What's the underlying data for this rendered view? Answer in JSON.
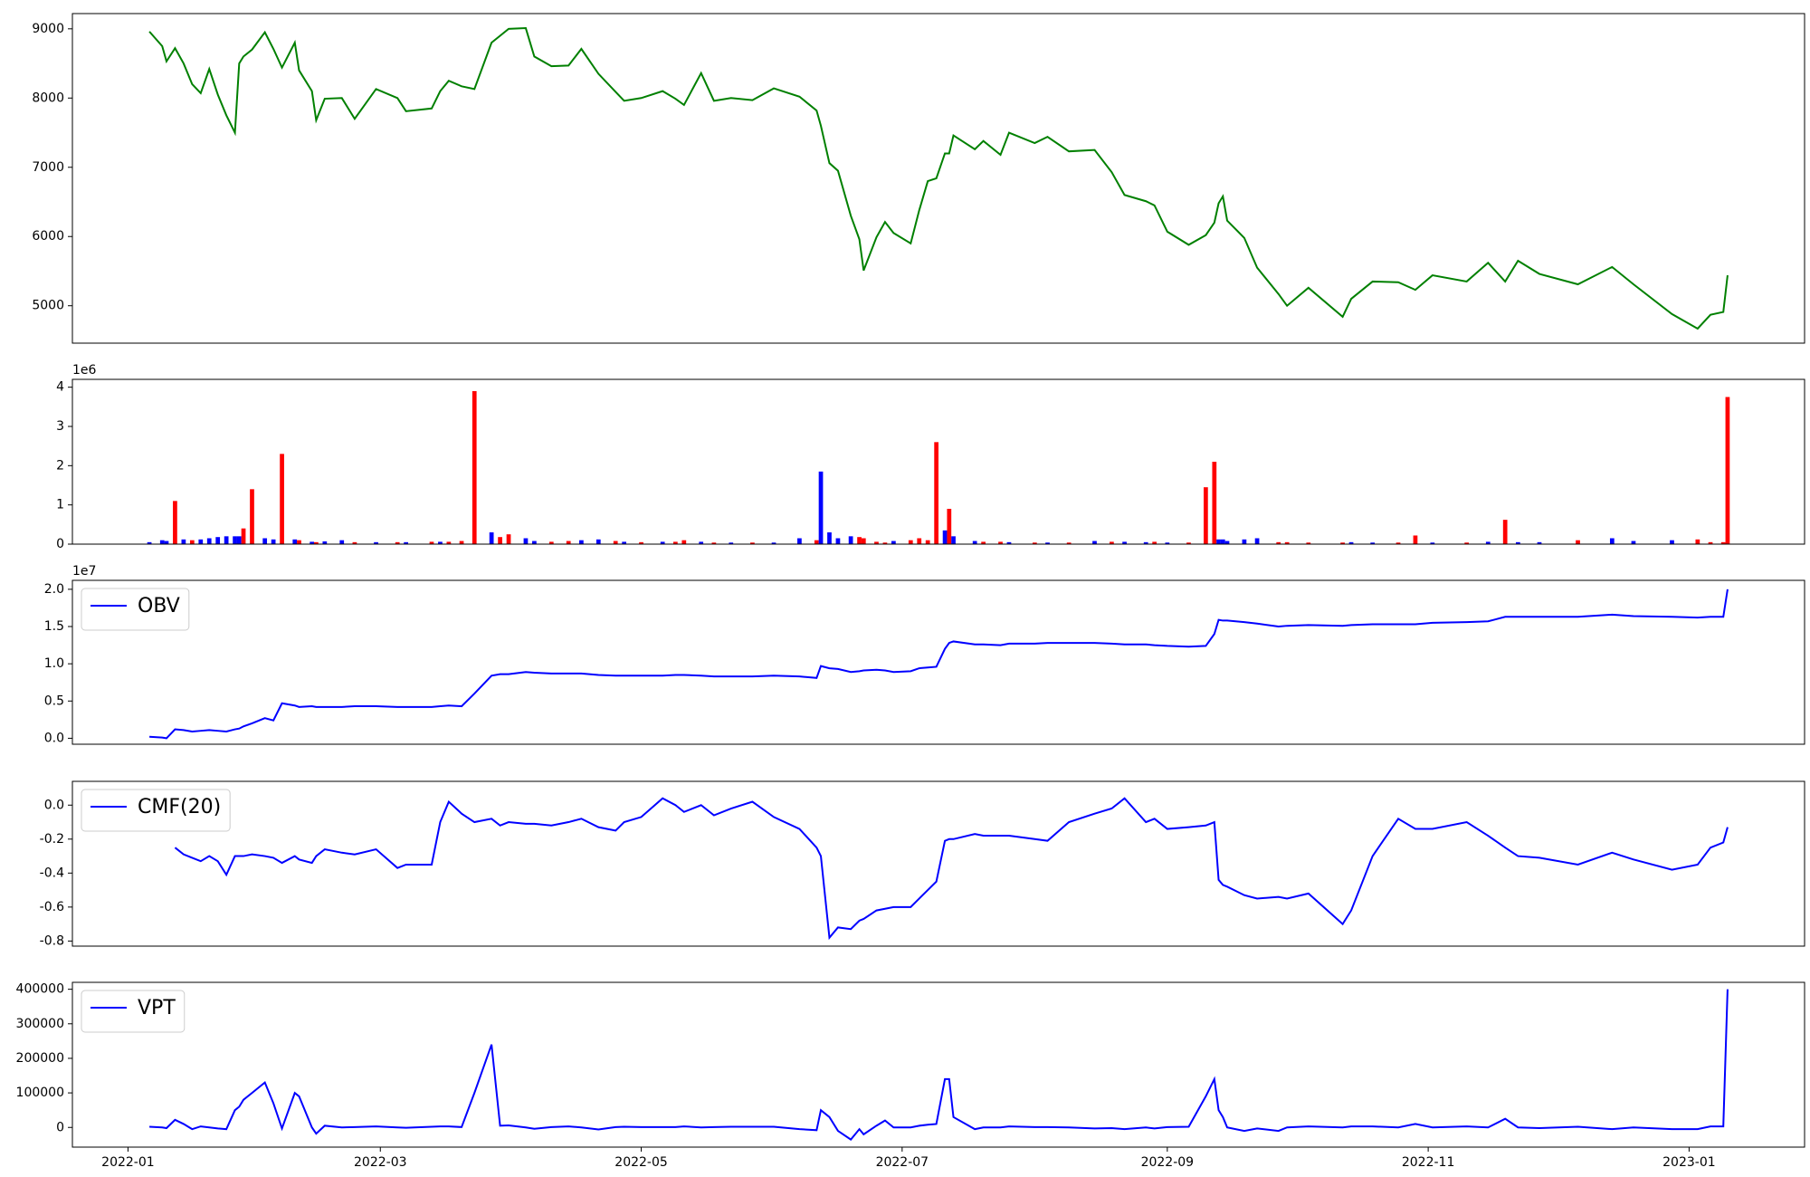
{
  "chart_data": {
    "type": "panels",
    "x": [
      "2022-01-06",
      "2022-01-09",
      "2022-01-10",
      "2022-01-12",
      "2022-01-14",
      "2022-01-16",
      "2022-01-18",
      "2022-01-20",
      "2022-01-22",
      "2022-01-24",
      "2022-01-26",
      "2022-01-27",
      "2022-01-28",
      "2022-01-30",
      "2022-02-02",
      "2022-02-04",
      "2022-02-06",
      "2022-02-09",
      "2022-02-10",
      "2022-02-13",
      "2022-02-14",
      "2022-02-16",
      "2022-02-20",
      "2022-02-23",
      "2022-02-28",
      "2022-03-05",
      "2022-03-07",
      "2022-03-13",
      "2022-03-15",
      "2022-03-17",
      "2022-03-20",
      "2022-03-23",
      "2022-03-27",
      "2022-03-29",
      "2022-03-31",
      "2022-04-04",
      "2022-04-06",
      "2022-04-10",
      "2022-04-14",
      "2022-04-17",
      "2022-04-21",
      "2022-04-25",
      "2022-04-27",
      "2022-05-01",
      "2022-05-06",
      "2022-05-09",
      "2022-05-11",
      "2022-05-15",
      "2022-05-18",
      "2022-05-22",
      "2022-05-27",
      "2022-06-01",
      "2022-06-07",
      "2022-06-11",
      "2022-06-12",
      "2022-06-14",
      "2022-06-16",
      "2022-06-19",
      "2022-06-21",
      "2022-06-22",
      "2022-06-25",
      "2022-06-27",
      "2022-06-29",
      "2022-07-03",
      "2022-07-05",
      "2022-07-07",
      "2022-07-09",
      "2022-07-11",
      "2022-07-12",
      "2022-07-13",
      "2022-07-18",
      "2022-07-20",
      "2022-07-24",
      "2022-07-26",
      "2022-08-01",
      "2022-08-04",
      "2022-08-09",
      "2022-08-15",
      "2022-08-19",
      "2022-08-22",
      "2022-08-27",
      "2022-08-29",
      "2022-09-01",
      "2022-09-06",
      "2022-09-10",
      "2022-09-12",
      "2022-09-13",
      "2022-09-14",
      "2022-09-15",
      "2022-09-19",
      "2022-09-22",
      "2022-09-27",
      "2022-09-29",
      "2022-10-04",
      "2022-10-12",
      "2022-10-14",
      "2022-10-19",
      "2022-10-25",
      "2022-10-29",
      "2022-11-02",
      "2022-11-10",
      "2022-11-15",
      "2022-11-19",
      "2022-11-22",
      "2022-11-27",
      "2022-12-06",
      "2022-12-14",
      "2022-12-19",
      "2022-12-28",
      "2023-01-03",
      "2023-01-06",
      "2023-01-09",
      "2023-01-10"
    ],
    "xlim": [
      "2021-12-19",
      "2023-01-28"
    ],
    "xticks": [
      {
        "value": "2022-01-01",
        "label": "2022-01"
      },
      {
        "value": "2022-03-01",
        "label": "2022-03"
      },
      {
        "value": "2022-05-01",
        "label": "2022-05"
      },
      {
        "value": "2022-07-01",
        "label": "2022-07"
      },
      {
        "value": "2022-09-01",
        "label": "2022-09"
      },
      {
        "value": "2022-11-01",
        "label": "2022-11"
      },
      {
        "value": "2023-01-01",
        "label": "2023-01"
      }
    ],
    "panels": [
      {
        "type": "line",
        "ylim": [
          4460,
          9220
        ],
        "yticks": [
          5000,
          6000,
          7000,
          8000,
          9000
        ],
        "series": [
          {
            "color": "#008000",
            "values": [
              8960,
              8750,
              8530,
              8720,
              8500,
              8200,
              8070,
              8420,
              8050,
              7750,
              7500,
              8500,
              8600,
              8700,
              8950,
              8710,
              8440,
              8800,
              8400,
              8100,
              7680,
              7990,
              8000,
              7700,
              8130,
              8000,
              7810,
              7850,
              8100,
              8250,
              8170,
              8130,
              8800,
              8900,
              9000,
              9010,
              8600,
              8460,
              8470,
              8710,
              8350,
              8090,
              7960,
              8000,
              8100,
              7990,
              7900,
              8360,
              7960,
              8000,
              7970,
              8140,
              8020,
              7820,
              7600,
              7060,
              6950,
              6300,
              5960,
              5510,
              5990,
              6210,
              6050,
              5900,
              6380,
              6800,
              6840,
              7200,
              7200,
              7460,
              7260,
              7380,
              7180,
              7500,
              7350,
              7440,
              7230,
              7250,
              6930,
              6600,
              6510,
              6450,
              6070,
              5880,
              6020,
              6200,
              6480,
              6580,
              6230,
              5980,
              5550,
              5170,
              5000,
              5260,
              4840,
              5100,
              5350,
              5340,
              5230,
              5440,
              5350,
              5620,
              5350,
              5650,
              5460,
              5310,
              5560,
              5310,
              4880,
              4670,
              4870,
              4910,
              5440
            ]
          }
        ]
      },
      {
        "type": "bar",
        "ylim": [
          0,
          4.2
        ],
        "yticks": [
          0,
          1,
          2,
          3,
          4
        ],
        "offset_label": "1e6",
        "values": [
          0.05,
          0.1,
          0.08,
          1.1,
          0.12,
          0.1,
          0.12,
          0.15,
          0.18,
          0.2,
          0.2,
          0.2,
          0.4,
          1.4,
          0.15,
          0.12,
          2.3,
          0.12,
          0.1,
          0.06,
          0.05,
          0.07,
          0.1,
          0.05,
          0.05,
          0.05,
          0.05,
          0.06,
          0.06,
          0.06,
          0.08,
          3.9,
          0.3,
          0.18,
          0.25,
          0.15,
          0.08,
          0.06,
          0.08,
          0.1,
          0.12,
          0.08,
          0.06,
          0.05,
          0.06,
          0.06,
          0.1,
          0.06,
          0.04,
          0.04,
          0.04,
          0.04,
          0.15,
          0.1,
          1.85,
          0.3,
          0.15,
          0.2,
          0.18,
          0.15,
          0.06,
          0.04,
          0.08,
          0.1,
          0.15,
          0.1,
          2.6,
          0.35,
          0.9,
          0.2,
          0.08,
          0.06,
          0.06,
          0.05,
          0.04,
          0.04,
          0.04,
          0.08,
          0.06,
          0.06,
          0.05,
          0.06,
          0.04,
          0.04,
          1.45,
          2.1,
          0.12,
          0.12,
          0.08,
          0.12,
          0.15,
          0.05,
          0.05,
          0.04,
          0.04,
          0.05,
          0.04,
          0.04,
          0.22,
          0.04,
          0.04,
          0.06,
          0.62,
          0.05,
          0.05,
          0.1,
          0.15,
          0.08,
          0.1,
          0.12,
          0.05,
          0.05,
          3.75
        ],
        "colors": [
          "blue",
          "blue",
          "blue",
          "red",
          "blue",
          "red",
          "blue",
          "blue",
          "blue",
          "blue",
          "blue",
          "blue",
          "red",
          "red",
          "blue",
          "blue",
          "red",
          "blue",
          "red",
          "blue",
          "red",
          "blue",
          "blue",
          "red",
          "blue",
          "red",
          "blue",
          "red",
          "blue",
          "red",
          "red",
          "red",
          "blue",
          "red",
          "red",
          "blue",
          "blue",
          "red",
          "red",
          "blue",
          "blue",
          "red",
          "blue",
          "red",
          "blue",
          "red",
          "red",
          "blue",
          "red",
          "blue",
          "red",
          "blue",
          "blue",
          "red",
          "blue",
          "blue",
          "blue",
          "blue",
          "red",
          "red",
          "red",
          "red",
          "blue",
          "red",
          "red",
          "red",
          "red",
          "blue",
          "red",
          "blue",
          "blue",
          "red",
          "red",
          "blue",
          "red",
          "blue",
          "red",
          "blue",
          "red",
          "blue",
          "blue",
          "red",
          "blue",
          "red",
          "red",
          "red",
          "blue",
          "blue",
          "blue",
          "blue",
          "blue",
          "red",
          "red",
          "red",
          "red",
          "blue",
          "blue",
          "red",
          "red",
          "blue",
          "red",
          "blue",
          "red",
          "blue",
          "blue",
          "red",
          "blue",
          "blue",
          "blue",
          "red",
          "red",
          "red",
          "red"
        ]
      },
      {
        "type": "line",
        "ylim": [
          -0.08,
          2.12
        ],
        "yticks": [
          {
            "value": 0,
            "label": "0.0"
          },
          0.5,
          {
            "value": 1,
            "label": "1.0"
          },
          1.5,
          {
            "value": 2,
            "label": "2.0"
          }
        ],
        "offset_label": "1e7",
        "legend": "upper left",
        "series": [
          {
            "name": "OBV",
            "color": "#0000ff",
            "values": [
              0.02,
              0.01,
              0.0,
              0.12,
              0.11,
              0.09,
              0.1,
              0.11,
              0.1,
              0.09,
              0.12,
              0.13,
              0.16,
              0.2,
              0.27,
              0.24,
              0.47,
              0.44,
              0.42,
              0.43,
              0.42,
              0.42,
              0.42,
              0.43,
              0.43,
              0.42,
              0.42,
              0.42,
              0.43,
              0.44,
              0.43,
              0.6,
              0.84,
              0.86,
              0.86,
              0.89,
              0.88,
              0.87,
              0.87,
              0.87,
              0.85,
              0.84,
              0.84,
              0.84,
              0.84,
              0.85,
              0.85,
              0.84,
              0.83,
              0.83,
              0.83,
              0.84,
              0.83,
              0.81,
              0.97,
              0.94,
              0.93,
              0.89,
              0.9,
              0.91,
              0.92,
              0.91,
              0.89,
              0.9,
              0.94,
              0.95,
              0.96,
              1.2,
              1.28,
              1.3,
              1.26,
              1.26,
              1.25,
              1.27,
              1.27,
              1.28,
              1.28,
              1.28,
              1.27,
              1.26,
              1.26,
              1.25,
              1.24,
              1.23,
              1.24,
              1.4,
              1.59,
              1.58,
              1.58,
              1.56,
              1.54,
              1.5,
              1.51,
              1.52,
              1.51,
              1.52,
              1.53,
              1.53,
              1.53,
              1.55,
              1.56,
              1.57,
              1.63,
              1.63,
              1.63,
              1.63,
              1.66,
              1.64,
              1.63,
              1.62,
              1.63,
              1.63,
              2.0
            ]
          }
        ]
      },
      {
        "type": "line",
        "ylim": [
          -0.83,
          0.14
        ],
        "yticks": [
          -0.8,
          -0.6,
          -0.4,
          -0.2,
          {
            "value": 0,
            "label": "0.0"
          }
        ],
        "legend": "upper left",
        "series": [
          {
            "name": "CMF(20)",
            "color": "#0000ff",
            "values": [
              null,
              null,
              null,
              -0.25,
              -0.29,
              -0.31,
              -0.33,
              -0.3,
              -0.33,
              -0.41,
              -0.3,
              -0.3,
              -0.3,
              -0.29,
              -0.3,
              -0.31,
              -0.34,
              -0.3,
              -0.32,
              -0.34,
              -0.3,
              -0.26,
              -0.28,
              -0.29,
              -0.26,
              -0.37,
              -0.35,
              -0.35,
              -0.1,
              0.02,
              -0.05,
              -0.1,
              -0.08,
              -0.12,
              -0.1,
              -0.11,
              -0.11,
              -0.12,
              -0.1,
              -0.08,
              -0.13,
              -0.15,
              -0.1,
              -0.07,
              0.04,
              0.0,
              -0.04,
              0.0,
              -0.06,
              -0.02,
              0.02,
              -0.07,
              -0.14,
              -0.25,
              -0.3,
              -0.78,
              -0.72,
              -0.73,
              -0.68,
              -0.67,
              -0.62,
              -0.61,
              -0.6,
              -0.6,
              -0.55,
              -0.5,
              -0.45,
              -0.21,
              -0.2,
              -0.2,
              -0.17,
              -0.18,
              -0.18,
              -0.18,
              -0.2,
              -0.21,
              -0.1,
              -0.05,
              -0.02,
              0.04,
              -0.1,
              -0.08,
              -0.14,
              -0.13,
              -0.12,
              -0.1,
              -0.44,
              -0.47,
              -0.48,
              -0.53,
              -0.55,
              -0.54,
              -0.55,
              -0.52,
              -0.7,
              -0.62,
              -0.3,
              -0.08,
              -0.14,
              -0.14,
              -0.1,
              -0.18,
              -0.25,
              -0.3,
              -0.31,
              -0.35,
              -0.28,
              -0.32,
              -0.38,
              -0.35,
              -0.25,
              -0.22,
              -0.13
            ]
          }
        ]
      },
      {
        "type": "line",
        "ylim": [
          -57000,
          420000
        ],
        "yticks": [
          0,
          100000,
          200000,
          300000,
          400000
        ],
        "legend": "upper left",
        "series": [
          {
            "name": "VPT",
            "color": "#0000ff",
            "values": [
              2000,
              0,
              -2000,
              22000,
              10000,
              -5000,
              3000,
              0,
              -3000,
              -5000,
              50000,
              60000,
              80000,
              100000,
              130000,
              70000,
              -3000,
              100000,
              90000,
              0,
              -18000,
              5000,
              0,
              1000,
              3000,
              0,
              -1000,
              2000,
              3000,
              3000,
              1000,
              100000,
              240000,
              5000,
              6000,
              0,
              -4000,
              1000,
              3000,
              0,
              -6000,
              1000,
              2000,
              1000,
              1000,
              1000,
              3000,
              0,
              1000,
              2000,
              2000,
              2000,
              -5000,
              -8000,
              50000,
              30000,
              -10000,
              -35000,
              -5000,
              -20000,
              5000,
              20000,
              0,
              0,
              5000,
              8000,
              10000,
              140000,
              140000,
              30000,
              -5000,
              0,
              0,
              3000,
              1000,
              1000,
              0,
              -3000,
              -2000,
              -5000,
              0,
              -3000,
              1000,
              2000,
              90000,
              140000,
              50000,
              30000,
              0,
              -10000,
              -3000,
              -10000,
              0,
              3000,
              0,
              3000,
              3000,
              0,
              10000,
              0,
              3000,
              0,
              25000,
              0,
              -2000,
              2000,
              -5000,
              0,
              -5000,
              -5000,
              3000,
              3000,
              400000
            ]
          }
        ]
      }
    ]
  }
}
